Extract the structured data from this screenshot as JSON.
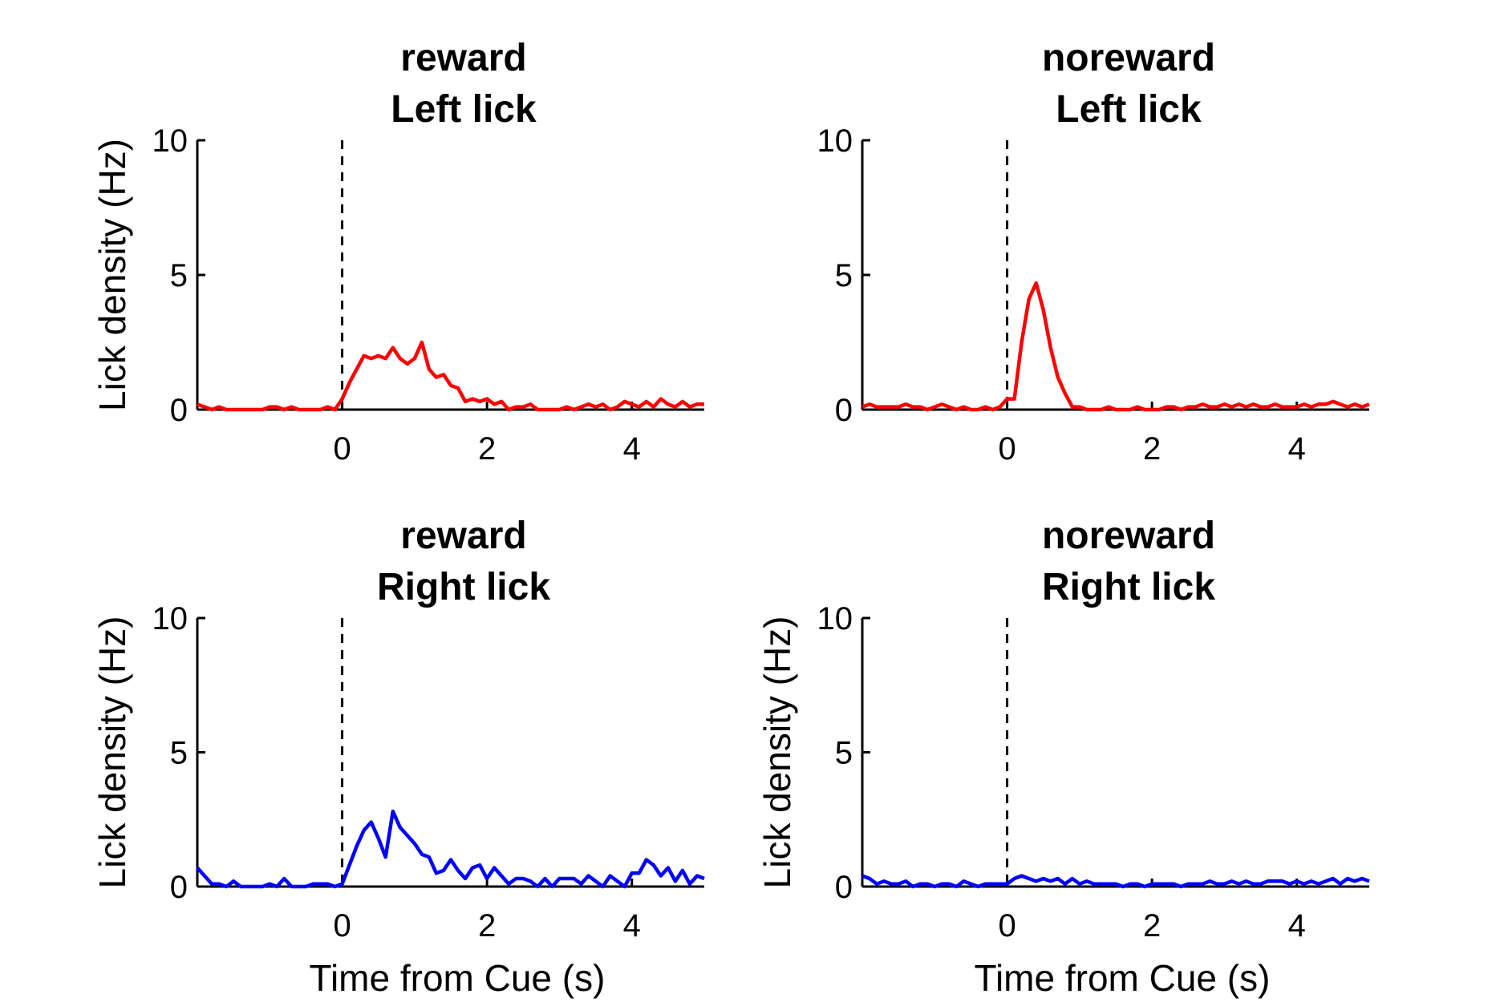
{
  "chart_data": [
    {
      "type": "line",
      "title_line1": "reward",
      "title_line2": "Left lick",
      "ylabel": "Lick density (Hz)",
      "xlabel": "",
      "xlim": [
        -2,
        5
      ],
      "ylim": [
        0,
        10
      ],
      "xticks": [
        0,
        2,
        4
      ],
      "yticks": [
        0,
        5,
        10
      ],
      "cue_line_x": 0,
      "color": "#ff0000",
      "x": [
        -2,
        -1.9,
        -1.8,
        -1.7,
        -1.6,
        -1.5,
        -1.4,
        -1.3,
        -1.2,
        -1.1,
        -1,
        -0.9,
        -0.8,
        -0.7,
        -0.6,
        -0.5,
        -0.4,
        -0.3,
        -0.2,
        -0.1,
        0,
        0.1,
        0.2,
        0.3,
        0.4,
        0.5,
        0.6,
        0.7,
        0.8,
        0.9,
        1,
        1.1,
        1.2,
        1.3,
        1.4,
        1.5,
        1.6,
        1.7,
        1.8,
        1.9,
        2,
        2.1,
        2.2,
        2.3,
        2.4,
        2.5,
        2.6,
        2.7,
        2.8,
        2.9,
        3,
        3.1,
        3.2,
        3.3,
        3.4,
        3.5,
        3.6,
        3.7,
        3.8,
        3.9,
        4,
        4.1,
        4.2,
        4.3,
        4.4,
        4.5,
        4.6,
        4.7,
        4.8,
        4.9,
        5
      ],
      "y": [
        0.2,
        0.1,
        0,
        0.1,
        0,
        0,
        0,
        0,
        0,
        0,
        0.1,
        0.1,
        0,
        0.1,
        0,
        0,
        0,
        0,
        0.1,
        0,
        0.4,
        1,
        1.5,
        2,
        1.9,
        2,
        1.9,
        2.3,
        1.9,
        1.7,
        1.9,
        2.5,
        1.5,
        1.2,
        1.3,
        0.9,
        0.8,
        0.3,
        0.4,
        0.3,
        0.4,
        0.2,
        0.3,
        0,
        0.1,
        0.1,
        0.2,
        0,
        0,
        0,
        0,
        0.1,
        0,
        0.1,
        0.2,
        0.1,
        0.2,
        0,
        0.1,
        0.3,
        0.2,
        0.1,
        0.3,
        0.1,
        0.4,
        0.2,
        0.1,
        0.3,
        0.1,
        0.2,
        0.2
      ]
    },
    {
      "type": "line",
      "title_line1": "noreward",
      "title_line2": "Left lick",
      "ylabel": "",
      "xlabel": "",
      "xlim": [
        -2,
        5
      ],
      "ylim": [
        0,
        10
      ],
      "xticks": [
        0,
        2,
        4
      ],
      "yticks": [
        0,
        5,
        10
      ],
      "cue_line_x": 0,
      "color": "#ff0000",
      "x": [
        -2,
        -1.9,
        -1.8,
        -1.7,
        -1.6,
        -1.5,
        -1.4,
        -1.3,
        -1.2,
        -1.1,
        -1,
        -0.9,
        -0.8,
        -0.7,
        -0.6,
        -0.5,
        -0.4,
        -0.3,
        -0.2,
        -0.1,
        0,
        0.1,
        0.2,
        0.3,
        0.4,
        0.5,
        0.6,
        0.7,
        0.8,
        0.9,
        1,
        1.1,
        1.2,
        1.3,
        1.4,
        1.5,
        1.6,
        1.7,
        1.8,
        1.9,
        2,
        2.1,
        2.2,
        2.3,
        2.4,
        2.5,
        2.6,
        2.7,
        2.8,
        2.9,
        3,
        3.1,
        3.2,
        3.3,
        3.4,
        3.5,
        3.6,
        3.7,
        3.8,
        3.9,
        4,
        4.1,
        4.2,
        4.3,
        4.4,
        4.5,
        4.6,
        4.7,
        4.8,
        4.9,
        5
      ],
      "y": [
        0.1,
        0.2,
        0.1,
        0.1,
        0.1,
        0.1,
        0.2,
        0.1,
        0.1,
        0,
        0.1,
        0.2,
        0.1,
        0,
        0.1,
        0,
        0,
        0.1,
        0,
        0.1,
        0.4,
        0.4,
        2.5,
        4.1,
        4.7,
        3.7,
        2.3,
        1.2,
        0.6,
        0.1,
        0.1,
        0,
        0,
        0,
        0.1,
        0,
        0,
        0,
        0.1,
        0,
        0,
        0,
        0.1,
        0.1,
        0,
        0.1,
        0.1,
        0.2,
        0.1,
        0.1,
        0.2,
        0.1,
        0.2,
        0.1,
        0.2,
        0.1,
        0.1,
        0.2,
        0.1,
        0.1,
        0.1,
        0.2,
        0.1,
        0.2,
        0.2,
        0.3,
        0.2,
        0.1,
        0.2,
        0.1,
        0.2
      ]
    },
    {
      "type": "line",
      "title_line1": "reward",
      "title_line2": "Right lick",
      "ylabel": "Lick density (Hz)",
      "xlabel": "Time from Cue (s)",
      "xlim": [
        -2,
        5
      ],
      "ylim": [
        0,
        10
      ],
      "xticks": [
        0,
        2,
        4
      ],
      "yticks": [
        0,
        5,
        10
      ],
      "cue_line_x": 0,
      "color": "#0000ff",
      "x": [
        -2,
        -1.9,
        -1.8,
        -1.7,
        -1.6,
        -1.5,
        -1.4,
        -1.3,
        -1.2,
        -1.1,
        -1,
        -0.9,
        -0.8,
        -0.7,
        -0.6,
        -0.5,
        -0.4,
        -0.3,
        -0.2,
        -0.1,
        0,
        0.1,
        0.2,
        0.3,
        0.4,
        0.5,
        0.6,
        0.7,
        0.8,
        0.9,
        1,
        1.1,
        1.2,
        1.3,
        1.4,
        1.5,
        1.6,
        1.7,
        1.8,
        1.9,
        2,
        2.1,
        2.2,
        2.3,
        2.4,
        2.5,
        2.6,
        2.7,
        2.8,
        2.9,
        3,
        3.1,
        3.2,
        3.3,
        3.4,
        3.5,
        3.6,
        3.7,
        3.8,
        3.9,
        4,
        4.1,
        4.2,
        4.3,
        4.4,
        4.5,
        4.6,
        4.7,
        4.8,
        4.9,
        5
      ],
      "y": [
        0.7,
        0.4,
        0.1,
        0.1,
        0,
        0.2,
        0,
        0,
        0,
        0,
        0.1,
        0,
        0.3,
        0,
        0,
        0,
        0.1,
        0.1,
        0.1,
        0,
        0.1,
        0.8,
        1.5,
        2.1,
        2.4,
        1.8,
        1.1,
        2.8,
        2.2,
        1.9,
        1.6,
        1.2,
        1.1,
        0.5,
        0.6,
        1,
        0.6,
        0.3,
        0.7,
        0.8,
        0.3,
        0.7,
        0.4,
        0.1,
        0.3,
        0.3,
        0.2,
        0,
        0.3,
        0,
        0.3,
        0.3,
        0.3,
        0.1,
        0.4,
        0.2,
        0,
        0.4,
        0.2,
        0,
        0.5,
        0.5,
        1,
        0.8,
        0.4,
        0.7,
        0.2,
        0.6,
        0.1,
        0.4,
        0.3
      ]
    },
    {
      "type": "line",
      "title_line1": "noreward",
      "title_line2": "Right lick",
      "ylabel": "Lick density (Hz)",
      "xlabel": "Time from Cue (s)",
      "xlim": [
        -2,
        5
      ],
      "ylim": [
        0,
        10
      ],
      "xticks": [
        0,
        2,
        4
      ],
      "yticks": [
        0,
        5,
        10
      ],
      "cue_line_x": 0,
      "color": "#0000ff",
      "x": [
        -2,
        -1.9,
        -1.8,
        -1.7,
        -1.6,
        -1.5,
        -1.4,
        -1.3,
        -1.2,
        -1.1,
        -1,
        -0.9,
        -0.8,
        -0.7,
        -0.6,
        -0.5,
        -0.4,
        -0.3,
        -0.2,
        -0.1,
        0,
        0.1,
        0.2,
        0.3,
        0.4,
        0.5,
        0.6,
        0.7,
        0.8,
        0.9,
        1,
        1.1,
        1.2,
        1.3,
        1.4,
        1.5,
        1.6,
        1.7,
        1.8,
        1.9,
        2,
        2.1,
        2.2,
        2.3,
        2.4,
        2.5,
        2.6,
        2.7,
        2.8,
        2.9,
        3,
        3.1,
        3.2,
        3.3,
        3.4,
        3.5,
        3.6,
        3.7,
        3.8,
        3.9,
        4,
        4.1,
        4.2,
        4.3,
        4.4,
        4.5,
        4.6,
        4.7,
        4.8,
        4.9,
        5
      ],
      "y": [
        0.4,
        0.3,
        0.1,
        0.2,
        0.1,
        0.1,
        0.2,
        0,
        0.1,
        0.1,
        0,
        0.1,
        0.1,
        0,
        0.2,
        0.1,
        0,
        0.1,
        0.1,
        0.1,
        0.1,
        0.3,
        0.4,
        0.3,
        0.2,
        0.3,
        0.2,
        0.3,
        0.1,
        0.3,
        0.1,
        0.2,
        0.1,
        0.1,
        0.1,
        0.1,
        0,
        0.1,
        0.1,
        0,
        0.1,
        0.1,
        0.1,
        0.1,
        0,
        0.1,
        0.1,
        0.1,
        0.2,
        0.1,
        0.1,
        0.2,
        0.1,
        0.2,
        0.1,
        0.1,
        0.2,
        0.2,
        0.2,
        0.1,
        0.2,
        0.1,
        0.2,
        0.1,
        0.2,
        0.3,
        0.1,
        0.3,
        0.2,
        0.3,
        0.2
      ]
    }
  ]
}
